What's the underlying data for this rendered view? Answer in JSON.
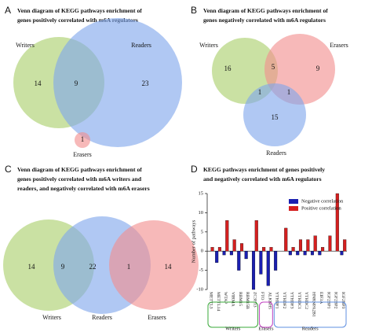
{
  "chart_data": [
    {
      "type": "venn",
      "label": "A",
      "title": [
        "Venn diagram of KEGG pathways enrichment of",
        "genes positively correlated with m6A regulators"
      ],
      "sets": [
        {
          "name": "Writers",
          "color": "#a9cf6b"
        },
        {
          "name": "Readers",
          "color": "#7fa6ec"
        },
        {
          "name": "Erasers",
          "color": "#f28e8e"
        }
      ],
      "regions": [
        {
          "value": 14
        },
        {
          "value": 9
        },
        {
          "value": 23
        },
        {
          "value": 1
        }
      ]
    },
    {
      "type": "venn",
      "label": "B",
      "title": [
        "Venn diagram of KEGG pathways enrichment of",
        "genes negatively correlated with m6A regulators"
      ],
      "sets": [
        {
          "name": "Writers",
          "color": "#a9cf6b"
        },
        {
          "name": "Erasers",
          "color": "#f28e8e"
        },
        {
          "name": "Readers",
          "color": "#7fa6ec"
        }
      ],
      "regions": [
        {
          "value": 16
        },
        {
          "value": 5
        },
        {
          "value": 9
        },
        {
          "value": 1
        },
        {
          "value": 1
        },
        {
          "value": 15
        }
      ]
    },
    {
      "type": "venn",
      "label": "C",
      "title": [
        "Venn diagram of KEGG pathways enrichment of",
        "genes positively correlated with m6A writers and",
        "readers, and negatively correlated with m6A erasers"
      ],
      "sets": [
        {
          "name": "Writers",
          "color": "#a9cf6b"
        },
        {
          "name": "Readers",
          "color": "#7fa6ec"
        },
        {
          "name": "Erasers",
          "color": "#f28e8e"
        }
      ],
      "regions": [
        {
          "value": 14
        },
        {
          "value": 9
        },
        {
          "value": 22
        },
        {
          "value": 1
        },
        {
          "value": 14
        }
      ]
    },
    {
      "type": "bar",
      "label": "D",
      "title": [
        "KEGG pathways enrichment of genes positively",
        "and negatively correlated with m6A regulators"
      ],
      "ylabel": "Number of pathways",
      "categories": [
        "METTL3",
        "METTL14",
        "WTAP",
        "VIRMA",
        "RBM15",
        "RBM15B",
        "ZC3H13",
        "FTO",
        "ALKBH5",
        "YTHDF1",
        "YTHDF2",
        "YTHDF3",
        "YTHDC1",
        "YTHDC2",
        "HNRNPA2B1",
        "EIF3A",
        "IGF2BP1",
        "IGF2BP2",
        "IGF2BP3"
      ],
      "series": [
        {
          "name": "Negative correlation",
          "color": "#1a1fb0",
          "values": [
            0,
            -3,
            -1,
            -1,
            -5,
            -2,
            -10,
            -6,
            -9,
            -5,
            0,
            -1,
            -1,
            -1,
            -1,
            -1,
            0,
            0,
            -1
          ]
        },
        {
          "name": "Positive correlation",
          "color": "#d41f1f",
          "values": [
            1,
            1,
            8,
            3,
            2,
            0,
            8,
            1,
            1,
            0,
            6,
            1,
            3,
            3,
            4,
            1,
            4,
            15,
            3
          ]
        }
      ],
      "ylim": [
        -10,
        15
      ],
      "yticks": [
        -10,
        -5,
        0,
        5,
        10,
        15
      ],
      "groups": [
        {
          "name": "Writers",
          "color": "#3aa83a"
        },
        {
          "name": "Erasers",
          "color": "#c040c0"
        },
        {
          "name": "Readers",
          "color": "#5f8fe0"
        }
      ]
    }
  ]
}
